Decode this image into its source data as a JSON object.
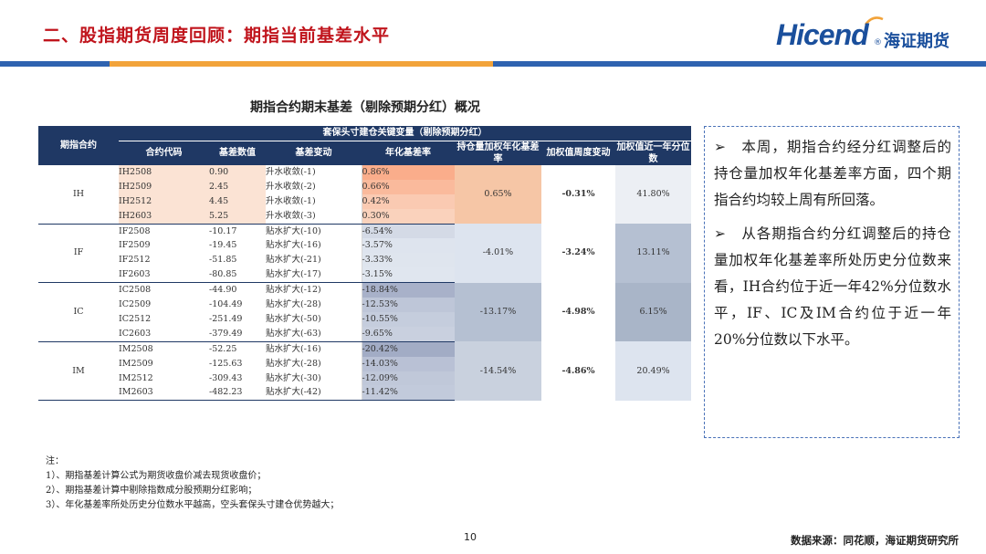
{
  "header": {
    "title": "二、股指期货周度回顾：期指当前基差水平",
    "logo_en": "Hicend",
    "logo_reg": "®",
    "logo_cn": "海证期货"
  },
  "colors": {
    "title_red": "#c0141c",
    "brand_blue": "#1a4f9c",
    "table_header": "#1f3864",
    "band_blue": "#2f63b0",
    "band_orange": "#f2a33a"
  },
  "table": {
    "caption": "期指合约期末基差（剔除预期分红）概况",
    "group_header": "期指合约",
    "super_header": "套保头寸建仓关键变量（剔除预期分红）",
    "columns": [
      "合约代码",
      "基差数值",
      "基差变动",
      "年化基差率",
      "持仓量加权年化基差率",
      "加权值周度变动",
      "加权值近一年分位数"
    ],
    "groups": [
      {
        "name": "IH",
        "weighted_rate": "0.65%",
        "weekly_change": "-0.31%",
        "percentile": "41.80%",
        "rows": [
          {
            "code": "IH2508",
            "basis": "0.90",
            "change": "升水收敛(-1)",
            "annual": "0.86%"
          },
          {
            "code": "IH2509",
            "basis": "2.45",
            "change": "升水收敛(-2)",
            "annual": "0.66%"
          },
          {
            "code": "IH2512",
            "basis": "4.45",
            "change": "升水收敛(-1)",
            "annual": "0.42%"
          },
          {
            "code": "IH2603",
            "basis": "5.25",
            "change": "升水收敛(-3)",
            "annual": "0.30%"
          }
        ]
      },
      {
        "name": "IF",
        "weighted_rate": "-4.01%",
        "weekly_change": "-3.24%",
        "percentile": "13.11%",
        "rows": [
          {
            "code": "IF2508",
            "basis": "-10.17",
            "change": "贴水扩大(-10)",
            "annual": "-6.54%"
          },
          {
            "code": "IF2509",
            "basis": "-19.45",
            "change": "贴水扩大(-16)",
            "annual": "-3.57%"
          },
          {
            "code": "IF2512",
            "basis": "-51.85",
            "change": "贴水扩大(-21)",
            "annual": "-3.33%"
          },
          {
            "code": "IF2603",
            "basis": "-80.85",
            "change": "贴水扩大(-17)",
            "annual": "-3.15%"
          }
        ]
      },
      {
        "name": "IC",
        "weighted_rate": "-13.17%",
        "weekly_change": "-4.98%",
        "percentile": "6.15%",
        "rows": [
          {
            "code": "IC2508",
            "basis": "-44.90",
            "change": "贴水扩大(-12)",
            "annual": "-18.84%"
          },
          {
            "code": "IC2509",
            "basis": "-104.49",
            "change": "贴水扩大(-28)",
            "annual": "-12.53%"
          },
          {
            "code": "IC2512",
            "basis": "-251.49",
            "change": "贴水扩大(-50)",
            "annual": "-10.55%"
          },
          {
            "code": "IC2603",
            "basis": "-379.49",
            "change": "贴水扩大(-63)",
            "annual": "-9.65%"
          }
        ]
      },
      {
        "name": "IM",
        "weighted_rate": "-14.54%",
        "weekly_change": "-4.86%",
        "percentile": "20.49%",
        "rows": [
          {
            "code": "IM2508",
            "basis": "-52.25",
            "change": "贴水扩大(-16)",
            "annual": "-20.42%"
          },
          {
            "code": "IM2509",
            "basis": "-125.63",
            "change": "贴水扩大(-28)",
            "annual": "-14.03%"
          },
          {
            "code": "IM2512",
            "basis": "-309.43",
            "change": "贴水扩大(-30)",
            "annual": "-12.09%"
          },
          {
            "code": "IM2603",
            "basis": "-482.23",
            "change": "贴水扩大(-42)",
            "annual": "-11.42%"
          }
        ]
      }
    ]
  },
  "summary": {
    "bullet_1": "➢　本周，期指合约经分红调整后的持仓量加权年化基差率方面，四个期指合约均较上周有所回落。",
    "bullet_2": "➢　从各期指合约分红调整后的持仓量加权年化基差率所处历史分位数来看，IH合约位于近一年42%分位数水平，IF、IC及IM合约位于近一年20%分位数以下水平。"
  },
  "notes": {
    "heading": "注：",
    "items": [
      "1）、期指基差计算公式为期货收盘价减去现货收盘价；",
      "2）、期指基差计算中剔除指数成分股预期分红影响；",
      "3）、年化基差率所处历史分位数水平越高，空头套保头寸建仓优势越大；"
    ]
  },
  "footer": {
    "page_number": "10",
    "source": "数据来源：同花顺，海证期货研究所"
  }
}
